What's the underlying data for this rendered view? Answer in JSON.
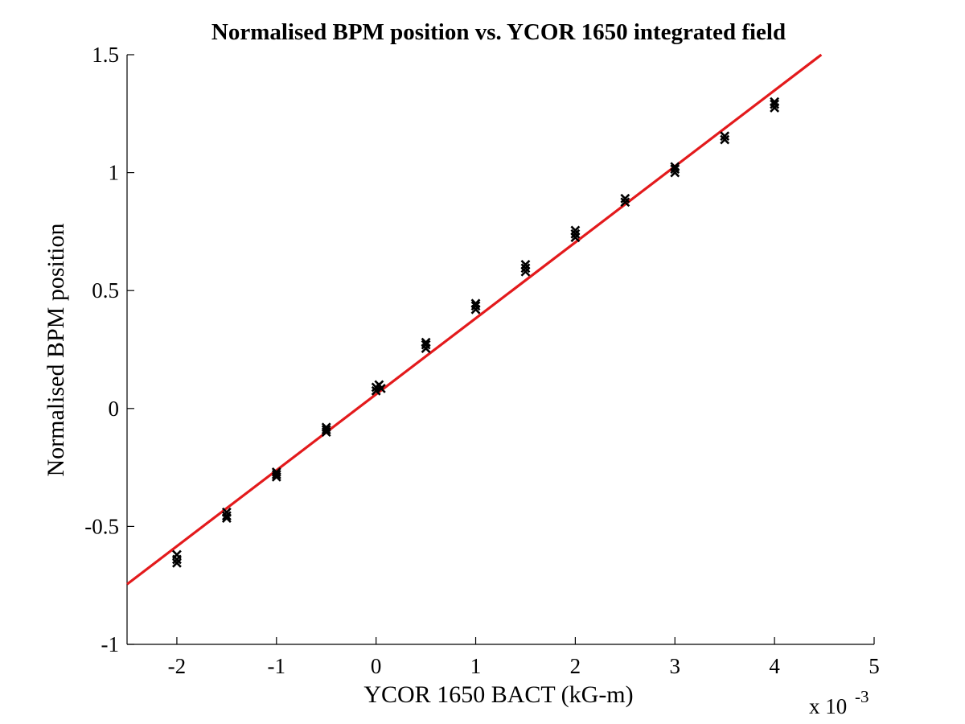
{
  "chart_data": {
    "type": "scatter",
    "title": "Normalised BPM position vs. YCOR 1650 integrated field",
    "xlabel": "YCOR 1650 BACT (kG-m)",
    "ylabel": "Normalised BPM position",
    "x_multiplier_label": "x 10",
    "x_multiplier_exponent": "-3",
    "xlim": [
      -2.5,
      5
    ],
    "ylim": [
      -1,
      1.5
    ],
    "x_tick_values": [
      -2,
      -1,
      0,
      1,
      2,
      3,
      4,
      5
    ],
    "x_tick_labels": [
      "-2",
      "-1",
      "0",
      "1",
      "2",
      "3",
      "4",
      "5"
    ],
    "y_tick_values": [
      -1,
      -0.5,
      0,
      0.5,
      1,
      1.5
    ],
    "y_tick_labels": [
      "-1",
      "-0.5",
      "0",
      "0.5",
      "1",
      "1.5"
    ],
    "grid": false,
    "legend": "none",
    "series": [
      {
        "kind": "points",
        "marker": "x",
        "color": "#000000",
        "points": [
          [
            -2.0,
            -0.62
          ],
          [
            -2.0,
            -0.64
          ],
          [
            -2.0,
            -0.655
          ],
          [
            -1.5,
            -0.44
          ],
          [
            -1.5,
            -0.455
          ],
          [
            -1.5,
            -0.465
          ],
          [
            -1.0,
            -0.27
          ],
          [
            -1.0,
            -0.28
          ],
          [
            -1.0,
            -0.29
          ],
          [
            -0.5,
            -0.08
          ],
          [
            -0.5,
            -0.09
          ],
          [
            -0.5,
            -0.1
          ],
          [
            0.0,
            0.075
          ],
          [
            0.0,
            0.09
          ],
          [
            0.03,
            0.1
          ],
          [
            0.05,
            0.085
          ],
          [
            0.5,
            0.255
          ],
          [
            0.5,
            0.27
          ],
          [
            0.5,
            0.28
          ],
          [
            1.0,
            0.42
          ],
          [
            1.0,
            0.435
          ],
          [
            1.0,
            0.445
          ],
          [
            1.5,
            0.58
          ],
          [
            1.5,
            0.595
          ],
          [
            1.5,
            0.61
          ],
          [
            2.0,
            0.725
          ],
          [
            2.0,
            0.74
          ],
          [
            2.0,
            0.755
          ],
          [
            2.5,
            0.875
          ],
          [
            2.5,
            0.89
          ],
          [
            3.0,
            1.0
          ],
          [
            3.0,
            1.015
          ],
          [
            3.0,
            1.025
          ],
          [
            3.5,
            1.14
          ],
          [
            3.5,
            1.155
          ],
          [
            4.0,
            1.275
          ],
          [
            4.0,
            1.29
          ],
          [
            4.0,
            1.3
          ]
        ]
      },
      {
        "kind": "fit-line",
        "color": "#e31a1c",
        "points": [
          [
            -2.5,
            -0.745
          ],
          [
            4.47,
            1.5
          ]
        ]
      }
    ]
  }
}
